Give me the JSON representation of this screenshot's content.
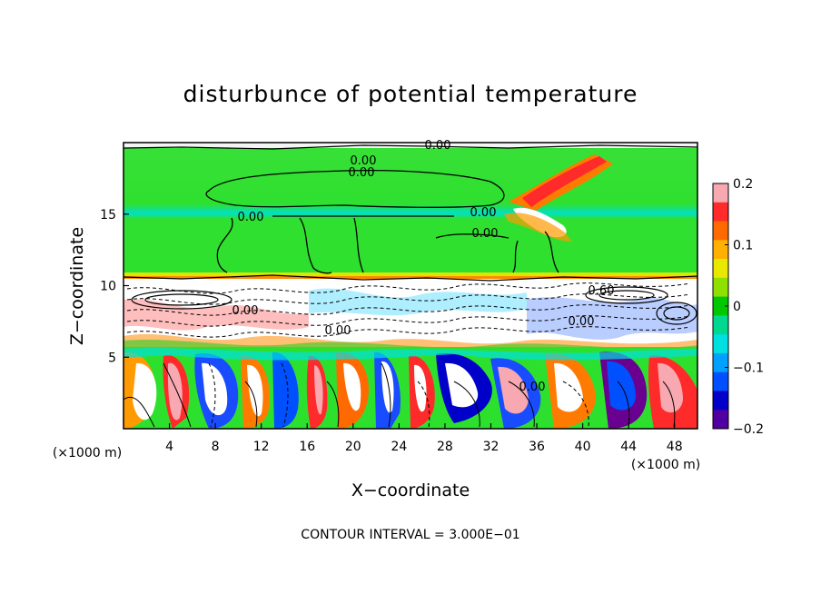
{
  "chart_data": {
    "type": "heatmap",
    "title": "disturbunce of potential temperature",
    "xlabel": "X−coordinate",
    "ylabel": "Z−coordinate",
    "x_unit": "(×1000 m)",
    "y_unit": "(×1000 m)",
    "xlim": [
      0,
      50
    ],
    "ylim": [
      0,
      20
    ],
    "x_ticks": [
      "4",
      "8",
      "12",
      "16",
      "20",
      "24",
      "28",
      "32",
      "36",
      "40",
      "44",
      "48"
    ],
    "y_ticks": [
      "5",
      "10",
      "15"
    ],
    "colorbar": {
      "range": [
        -0.2,
        0.2
      ],
      "tick_labels": [
        "0.2",
        "0.1",
        "0",
        "−0.1",
        "−0.2"
      ],
      "colors": [
        "#f7a8b0",
        "#ff2a2a",
        "#ff6a00",
        "#ffb000",
        "#e8e800",
        "#8fe000",
        "#00c800",
        "#00d890",
        "#00e0e0",
        "#00a0ff",
        "#0050ff",
        "#0000c8",
        "#5000a0"
      ]
    },
    "contour_labels": [
      "0.00",
      "0.00",
      "0.00",
      "0.00",
      "0.00",
      "0.00",
      "0.00",
      "0.60",
      "0.00",
      "0.00",
      "0.00"
    ],
    "footer": "CONTOUR INTERVAL = 3.000E−01",
    "layers": {
      "upper_stratosphere_theta": 0.0,
      "tropopause_height_km": 10.5,
      "mixed_layer_top_km": 6
    }
  },
  "colors": {
    "plume_green": "#2ee02e",
    "cyan_band": "#00e0d0",
    "orange": "#ff7a00",
    "blue": "#1a4cff",
    "purple": "#6a0090",
    "pink": "#f7a8b0"
  }
}
